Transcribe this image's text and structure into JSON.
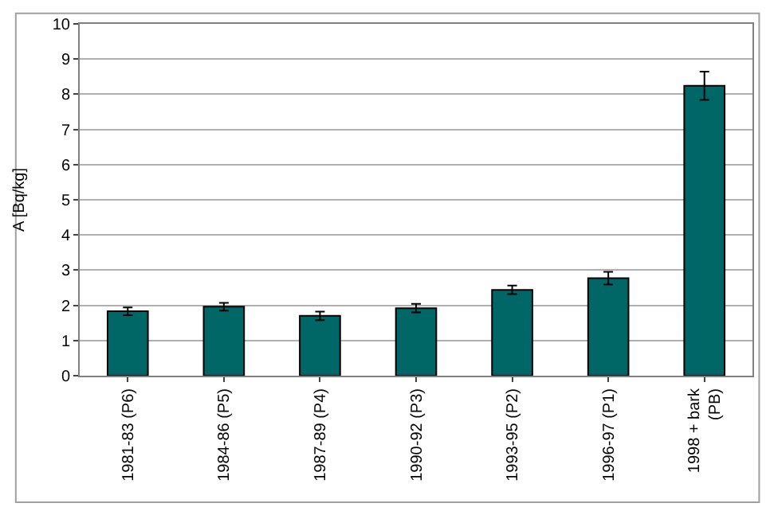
{
  "chart_data": {
    "type": "bar",
    "ylabel": "A [Bq/kg]",
    "categories": [
      "1981-83 (P6)",
      "1984-86 (P5)",
      "1987-89 (P4)",
      "1990-92 (P3)",
      "1993-95 (P2)",
      "1996-97 (P1)",
      "1998 + bark (PB)"
    ],
    "values": [
      1.83,
      1.96,
      1.7,
      1.92,
      2.44,
      2.77,
      8.24
    ],
    "errors": [
      0.11,
      0.11,
      0.12,
      0.12,
      0.12,
      0.18,
      0.4
    ],
    "color": "#006666",
    "ylim": [
      0,
      10
    ],
    "yticks": [
      0,
      1,
      2,
      3,
      4,
      5,
      6,
      7,
      8,
      9,
      10
    ],
    "grid": "y",
    "legend": false
  }
}
